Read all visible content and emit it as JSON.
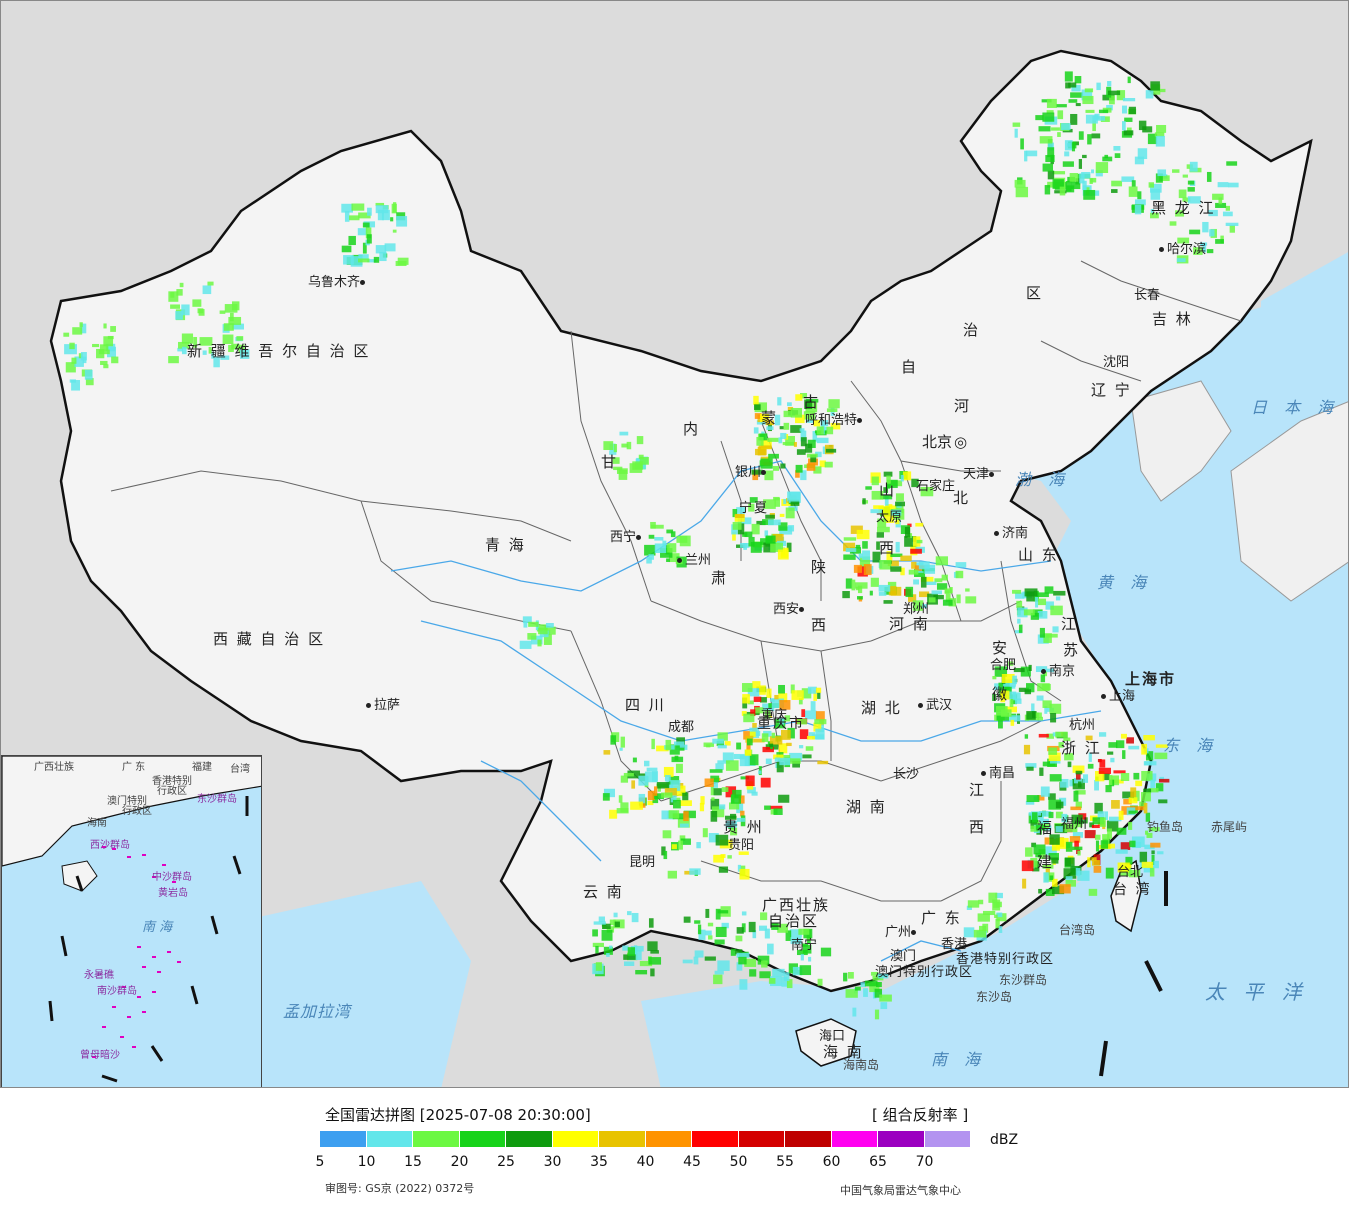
{
  "colors": {
    "land": "#f4f4f4",
    "sea": "#b8e4fa",
    "outside": "#dcdcdc",
    "border": "#111111",
    "river": "#4aa8e8"
  },
  "map": {
    "provinces": [
      {
        "id": "xinjiang",
        "text": "新 疆 维 吾 尔 自 治 区"
      },
      {
        "id": "xizang",
        "text": "西 藏 自 治 区"
      },
      {
        "id": "qinghai",
        "text": "青     海"
      },
      {
        "id": "sichuan",
        "text": "四     川"
      },
      {
        "id": "yunnan",
        "text": "云     南"
      },
      {
        "id": "guizhou",
        "text": "贵     州"
      },
      {
        "id": "guangxi",
        "text": "广西壮族"
      },
      {
        "id": "guangxi2",
        "text": "自治区"
      },
      {
        "id": "guangdong",
        "text": "广     东"
      },
      {
        "id": "hainan",
        "text": "海     南"
      },
      {
        "id": "hunan",
        "text": "湖     南"
      },
      {
        "id": "hubei",
        "text": "湖     北"
      },
      {
        "id": "jiangxi",
        "text": "江"
      },
      {
        "id": "jiangxi2",
        "text": "西"
      },
      {
        "id": "fujian",
        "text": "福"
      },
      {
        "id": "fujian2",
        "text": "建"
      },
      {
        "id": "zhejiang",
        "text": "浙 江"
      },
      {
        "id": "anhui",
        "text": "安"
      },
      {
        "id": "anhui2",
        "text": "徽"
      },
      {
        "id": "jiangsu",
        "text": "江"
      },
      {
        "id": "jiangsu2",
        "text": "苏"
      },
      {
        "id": "shanghai",
        "text": "上海市"
      },
      {
        "id": "shandong",
        "text": "山 东"
      },
      {
        "id": "henan",
        "text": "河     南"
      },
      {
        "id": "shaanxi",
        "text": "陕"
      },
      {
        "id": "shaanxi2",
        "text": "西"
      },
      {
        "id": "shanxi",
        "text": "山"
      },
      {
        "id": "shanxi2",
        "text": "西"
      },
      {
        "id": "hebei",
        "text": "河"
      },
      {
        "id": "hebei2",
        "text": "北"
      },
      {
        "id": "gansu",
        "text": "甘"
      },
      {
        "id": "gansu2",
        "text": "肃"
      },
      {
        "id": "ningxia",
        "text": "宁夏"
      },
      {
        "id": "neimenggu1",
        "text": "内"
      },
      {
        "id": "neimenggu2",
        "text": "蒙"
      },
      {
        "id": "neimenggu3",
        "text": "古"
      },
      {
        "id": "neimenggu4",
        "text": "自"
      },
      {
        "id": "neimenggu5",
        "text": "治"
      },
      {
        "id": "neimenggu6",
        "text": "区"
      },
      {
        "id": "heilongjiang",
        "text": "黑     龙     江"
      },
      {
        "id": "jilin",
        "text": "吉     林"
      },
      {
        "id": "liaoning",
        "text": "辽     宁"
      },
      {
        "id": "chongqing",
        "text": "重庆市"
      },
      {
        "id": "taiwan",
        "text": "台 湾"
      },
      {
        "id": "hk",
        "text": "香港特别行政区"
      },
      {
        "id": "macao",
        "text": "澳门特别行政区"
      }
    ],
    "cities": [
      {
        "id": "urumqi",
        "text": "乌鲁木齐"
      },
      {
        "id": "lhasa",
        "text": "拉萨"
      },
      {
        "id": "xining",
        "text": "西宁"
      },
      {
        "id": "lanzhou",
        "text": "兰州"
      },
      {
        "id": "yinchuan",
        "text": "银川"
      },
      {
        "id": "hohhot",
        "text": "呼和浩特"
      },
      {
        "id": "beijing",
        "text": "北京"
      },
      {
        "id": "tianjin",
        "text": "天津"
      },
      {
        "id": "shijiazhuang",
        "text": "石家庄"
      },
      {
        "id": "taiyuan",
        "text": "太原"
      },
      {
        "id": "jinan",
        "text": "济南"
      },
      {
        "id": "zhengzhou",
        "text": "郑州"
      },
      {
        "id": "xian",
        "text": "西安"
      },
      {
        "id": "chengdu",
        "text": "成都"
      },
      {
        "id": "chongqingc",
        "text": "重庆"
      },
      {
        "id": "guiyang",
        "text": "贵阳"
      },
      {
        "id": "kunming",
        "text": "昆明"
      },
      {
        "id": "nanning",
        "text": "南宁"
      },
      {
        "id": "guangzhou",
        "text": "广州"
      },
      {
        "id": "hongkong",
        "text": "香港"
      },
      {
        "id": "macau",
        "text": "澳门"
      },
      {
        "id": "haikou",
        "text": "海口"
      },
      {
        "id": "changsha",
        "text": "长沙"
      },
      {
        "id": "wuhan",
        "text": "武汉"
      },
      {
        "id": "nanchang",
        "text": "南昌"
      },
      {
        "id": "fuzhou",
        "text": "福州"
      },
      {
        "id": "hangzhou",
        "text": "杭州"
      },
      {
        "id": "hefei",
        "text": "合肥"
      },
      {
        "id": "nanjing",
        "text": "南京"
      },
      {
        "id": "shanghaic",
        "text": "上海"
      },
      {
        "id": "taipei",
        "text": "台北"
      },
      {
        "id": "shenyang",
        "text": "沈阳"
      },
      {
        "id": "changchun",
        "text": "长春"
      },
      {
        "id": "harbin",
        "text": "哈尔滨"
      }
    ],
    "seas": [
      {
        "id": "bohai",
        "text": "渤 海"
      },
      {
        "id": "huanghai",
        "text": "黄 海"
      },
      {
        "id": "donghai",
        "text": "东 海"
      },
      {
        "id": "nanhai",
        "text": "南   海"
      },
      {
        "id": "taipingyang",
        "text": "太 平 洋"
      },
      {
        "id": "ribenhai",
        "text": "日 本 海"
      },
      {
        "id": "mengjiala",
        "text": "孟加拉湾"
      }
    ],
    "islands": [
      {
        "id": "diaoyu",
        "text": "钓鱼岛"
      },
      {
        "id": "chiwei",
        "text": "赤尾屿"
      },
      {
        "id": "taiwandao",
        "text": "台湾岛"
      },
      {
        "id": "dongsha_qd",
        "text": "东沙群岛"
      },
      {
        "id": "dongsha",
        "text": "东沙岛"
      },
      {
        "id": "hainandao",
        "text": "海南岛"
      }
    ],
    "inset": {
      "labels": [
        {
          "id": "i-gx",
          "text": "广西壮族"
        },
        {
          "id": "i-gd",
          "text": "广  东"
        },
        {
          "id": "i-fj",
          "text": "福建"
        },
        {
          "id": "i-tw",
          "text": "台湾"
        },
        {
          "id": "i-hk",
          "text": "香港特别"
        },
        {
          "id": "i-hk2",
          "text": "行政区"
        },
        {
          "id": "i-mo",
          "text": "澳门特别"
        },
        {
          "id": "i-mo2",
          "text": "行政区"
        },
        {
          "id": "i-dongsha",
          "text": "东沙群岛"
        },
        {
          "id": "i-hainan",
          "text": "海南"
        },
        {
          "id": "i-xisha",
          "text": "西沙群岛"
        },
        {
          "id": "i-zhongsha",
          "text": "中沙群岛"
        },
        {
          "id": "i-huangyan",
          "text": "黄岩岛"
        },
        {
          "id": "i-nanhai",
          "text": "南  海"
        },
        {
          "id": "i-yongshu",
          "text": "永暑礁"
        },
        {
          "id": "i-nansha",
          "text": "南沙群岛"
        },
        {
          "id": "i-zengmu",
          "text": "曾母暗沙"
        }
      ]
    }
  },
  "legend": {
    "title": "全国雷达拼图 [2025-07-08 20:30:00]",
    "product": "[ 组合反射率 ]",
    "unit": "dBZ",
    "colors": [
      "#3d9ff0",
      "#62e6ea",
      "#6cf842",
      "#17d31a",
      "#0e9b0e",
      "#ffff00",
      "#e8c300",
      "#ff9300",
      "#ff0000",
      "#d40000",
      "#bf0000",
      "#ff00f0",
      "#9b00c0",
      "#b393f0"
    ],
    "ticks": [
      "5",
      "10",
      "15",
      "20",
      "25",
      "30",
      "35",
      "40",
      "45",
      "50",
      "55",
      "60",
      "65",
      "70"
    ],
    "approval": "审图号: GS京 (2022) 0372号",
    "source": "中国气象局雷达气象中心"
  }
}
